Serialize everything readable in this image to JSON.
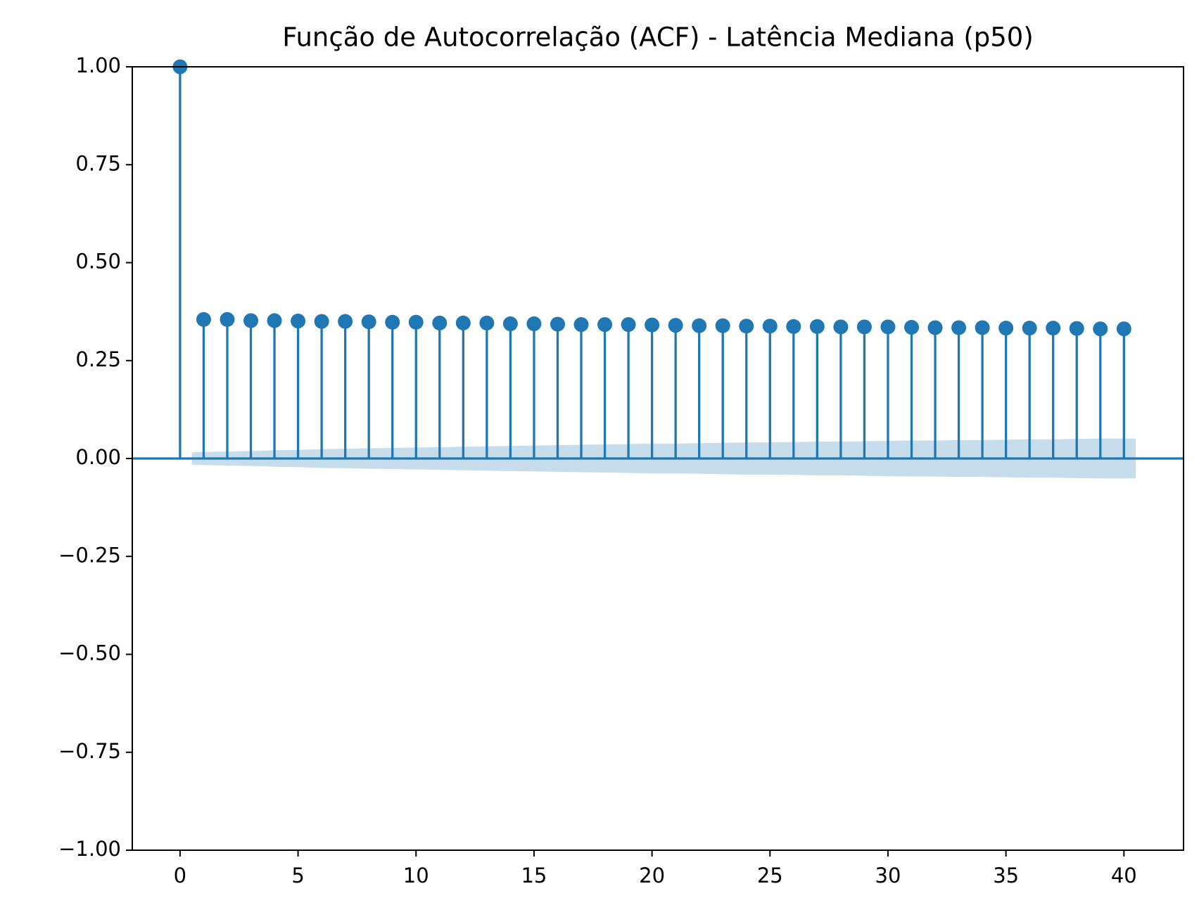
{
  "chart_data": {
    "type": "stem",
    "title": "Função de Autocorrelação (ACF) - Latência Mediana (p50)",
    "color": "#1f77b4",
    "x": [
      0,
      1,
      2,
      3,
      4,
      5,
      6,
      7,
      8,
      9,
      10,
      11,
      12,
      13,
      14,
      15,
      16,
      17,
      18,
      19,
      20,
      21,
      22,
      23,
      24,
      25,
      26,
      27,
      28,
      29,
      30,
      31,
      32,
      33,
      34,
      35,
      36,
      37,
      38,
      39,
      40
    ],
    "values": [
      1.0,
      0.355,
      0.355,
      0.352,
      0.352,
      0.351,
      0.35,
      0.35,
      0.349,
      0.348,
      0.348,
      0.346,
      0.346,
      0.346,
      0.344,
      0.344,
      0.343,
      0.342,
      0.342,
      0.342,
      0.341,
      0.34,
      0.339,
      0.339,
      0.338,
      0.338,
      0.337,
      0.337,
      0.336,
      0.336,
      0.336,
      0.335,
      0.334,
      0.334,
      0.334,
      0.333,
      0.333,
      0.333,
      0.332,
      0.331,
      0.331
    ],
    "confidence_band": {
      "x": [
        0.5,
        2,
        3,
        4,
        5,
        6,
        7,
        8,
        9,
        10,
        11,
        12,
        13,
        14,
        15,
        16,
        17,
        18,
        19,
        20,
        21,
        22,
        23,
        24,
        25,
        26,
        27,
        28,
        29,
        30,
        31,
        32,
        33,
        34,
        35,
        36,
        37,
        38,
        39,
        40.5
      ],
      "upper": [
        0.016,
        0.018,
        0.019,
        0.021,
        0.022,
        0.024,
        0.025,
        0.026,
        0.027,
        0.028,
        0.029,
        0.03,
        0.031,
        0.032,
        0.033,
        0.034,
        0.035,
        0.036,
        0.037,
        0.038,
        0.038,
        0.039,
        0.04,
        0.041,
        0.041,
        0.042,
        0.043,
        0.043,
        0.044,
        0.045,
        0.046,
        0.046,
        0.047,
        0.047,
        0.048,
        0.049,
        0.049,
        0.05,
        0.051,
        0.051
      ],
      "lower": [
        -0.016,
        -0.018,
        -0.019,
        -0.021,
        -0.022,
        -0.024,
        -0.025,
        -0.026,
        -0.027,
        -0.028,
        -0.029,
        -0.03,
        -0.031,
        -0.032,
        -0.033,
        -0.034,
        -0.035,
        -0.036,
        -0.037,
        -0.038,
        -0.038,
        -0.039,
        -0.04,
        -0.041,
        -0.041,
        -0.042,
        -0.043,
        -0.043,
        -0.044,
        -0.045,
        -0.046,
        -0.046,
        -0.047,
        -0.047,
        -0.048,
        -0.049,
        -0.049,
        -0.05,
        -0.051,
        -0.051
      ]
    },
    "xlim": [
      -2.025,
      42.525
    ],
    "xticks": [
      0,
      5,
      10,
      15,
      20,
      25,
      30,
      35,
      40
    ],
    "ylim": [
      -1,
      1
    ],
    "yticks": [
      {
        "value": -1,
        "label": "−1.00"
      },
      {
        "value": -0.75,
        "label": "−0.75"
      },
      {
        "value": -0.5,
        "label": "−0.50"
      },
      {
        "value": -0.25,
        "label": "−0.25"
      },
      {
        "value": 0,
        "label": "0.00"
      },
      {
        "value": 0.25,
        "label": "0.25"
      },
      {
        "value": 0.5,
        "label": "0.50"
      },
      {
        "value": 0.75,
        "label": "0.75"
      },
      {
        "value": 1,
        "label": "1.00"
      }
    ]
  }
}
